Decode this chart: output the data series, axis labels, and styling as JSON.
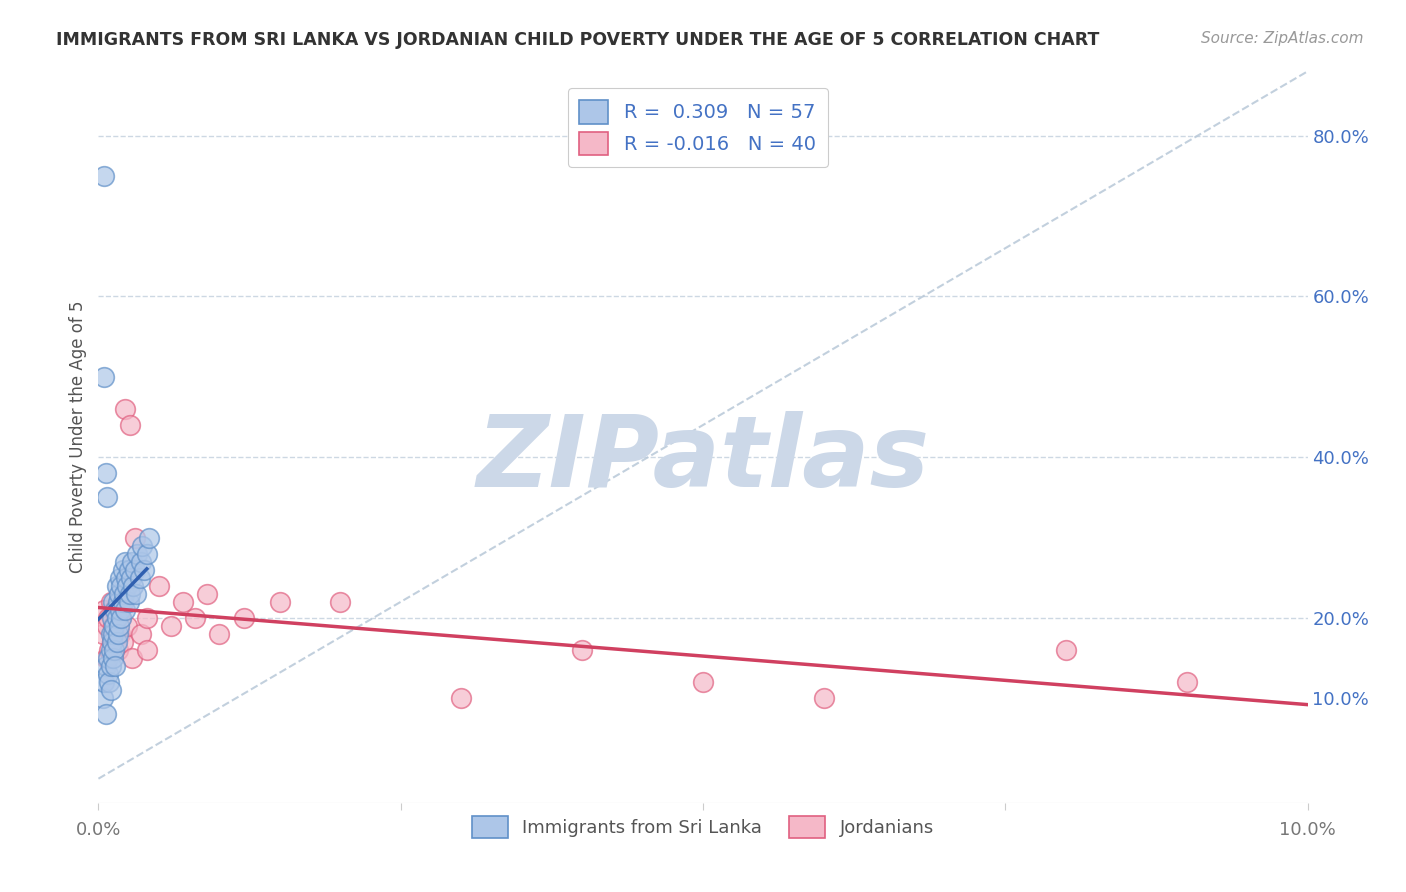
{
  "title": "IMMIGRANTS FROM SRI LANKA VS JORDANIAN CHILD POVERTY UNDER THE AGE OF 5 CORRELATION CHART",
  "source": "Source: ZipAtlas.com",
  "ylabel": "Child Poverty Under the Age of 5",
  "right_yticks": [
    0.1,
    0.2,
    0.4,
    0.6,
    0.8
  ],
  "right_ytick_labels": [
    "10.0%",
    "20.0%",
    "40.0%",
    "60.0%",
    "80.0%"
  ],
  "xlim": [
    0.0,
    0.1
  ],
  "ylim": [
    -0.03,
    0.88
  ],
  "legend_blue_R": "0.309",
  "legend_blue_N": "57",
  "legend_pink_R": "-0.016",
  "legend_pink_N": "40",
  "legend_label_blue": "Immigrants from Sri Lanka",
  "legend_label_pink": "Jordanians",
  "blue_color": "#adc6e8",
  "pink_color": "#f5b8c8",
  "blue_edge_color": "#6090c8",
  "pink_edge_color": "#e06080",
  "blue_line_color": "#3060b0",
  "pink_line_color": "#d04060",
  "diagonal_color": "#b8c8d8",
  "watermark_color": "#ccd8e8",
  "grid_color": "#c8d4e0",
  "background_color": "#ffffff",
  "blue_scatter_x": [
    0.0004,
    0.0005,
    0.0006,
    0.0006,
    0.0008,
    0.0008,
    0.0009,
    0.001,
    0.001,
    0.001,
    0.001,
    0.0011,
    0.0011,
    0.0012,
    0.0012,
    0.0012,
    0.0013,
    0.0013,
    0.0014,
    0.0014,
    0.0015,
    0.0015,
    0.0015,
    0.0016,
    0.0016,
    0.0017,
    0.0017,
    0.0018,
    0.0018,
    0.0019,
    0.0019,
    0.002,
    0.002,
    0.0021,
    0.0022,
    0.0022,
    0.0023,
    0.0024,
    0.0025,
    0.0025,
    0.0026,
    0.0027,
    0.0028,
    0.0029,
    0.003,
    0.0031,
    0.0032,
    0.0034,
    0.0035,
    0.0036,
    0.0038,
    0.004,
    0.0042,
    0.0005,
    0.0005,
    0.0006,
    0.0007
  ],
  "blue_scatter_y": [
    0.1,
    0.12,
    0.08,
    0.14,
    0.13,
    0.15,
    0.12,
    0.16,
    0.14,
    0.18,
    0.11,
    0.17,
    0.2,
    0.15,
    0.18,
    0.22,
    0.16,
    0.19,
    0.14,
    0.21,
    0.17,
    0.2,
    0.24,
    0.18,
    0.22,
    0.19,
    0.23,
    0.21,
    0.25,
    0.2,
    0.24,
    0.22,
    0.26,
    0.23,
    0.21,
    0.27,
    0.25,
    0.24,
    0.22,
    0.26,
    0.23,
    0.25,
    0.27,
    0.24,
    0.26,
    0.23,
    0.28,
    0.25,
    0.27,
    0.29,
    0.26,
    0.28,
    0.3,
    0.75,
    0.5,
    0.38,
    0.35
  ],
  "pink_scatter_x": [
    0.0004,
    0.0005,
    0.0006,
    0.0007,
    0.0008,
    0.0009,
    0.001,
    0.0011,
    0.0012,
    0.0013,
    0.0014,
    0.0015,
    0.0016,
    0.0017,
    0.0018,
    0.0019,
    0.002,
    0.0022,
    0.0024,
    0.0026,
    0.0028,
    0.003,
    0.0035,
    0.004,
    0.004,
    0.005,
    0.006,
    0.007,
    0.008,
    0.009,
    0.01,
    0.012,
    0.015,
    0.02,
    0.03,
    0.04,
    0.05,
    0.06,
    0.08,
    0.09
  ],
  "pink_scatter_y": [
    0.18,
    0.21,
    0.15,
    0.19,
    0.2,
    0.16,
    0.22,
    0.17,
    0.19,
    0.21,
    0.18,
    0.2,
    0.16,
    0.22,
    0.18,
    0.2,
    0.17,
    0.46,
    0.19,
    0.44,
    0.15,
    0.3,
    0.18,
    0.16,
    0.2,
    0.24,
    0.19,
    0.22,
    0.2,
    0.23,
    0.18,
    0.2,
    0.22,
    0.22,
    0.1,
    0.16,
    0.12,
    0.1,
    0.16,
    0.12
  ],
  "xtick_positions": [
    0.0,
    0.025,
    0.05,
    0.075,
    0.1
  ],
  "xtick_labels": [
    "",
    "",
    "",
    "",
    ""
  ]
}
